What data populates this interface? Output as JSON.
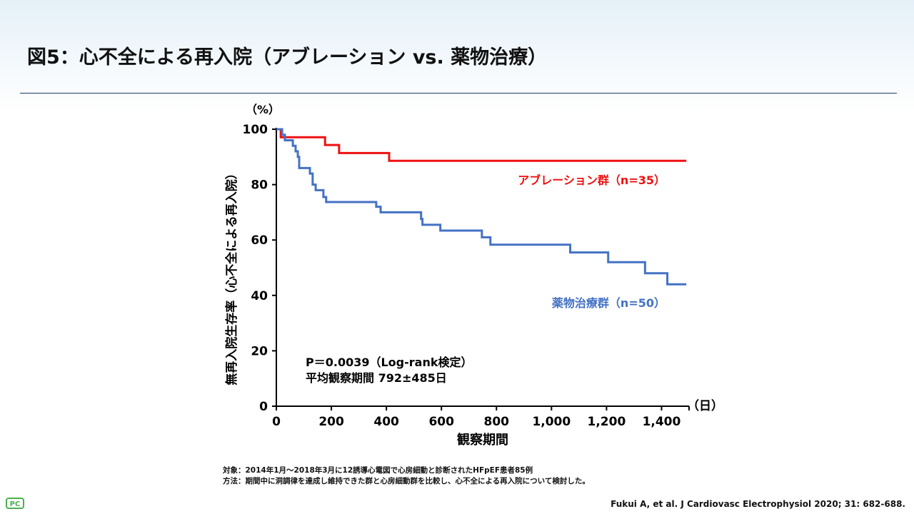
{
  "title": "図5：心不全による再入院（アブレーション vs. 薬物治療）",
  "chart_data": {
    "type": "line",
    "title": "",
    "xlabel": "観察期間",
    "ylabel": "無再入院生存率（心不全による再入院）",
    "x_unit": "（日）",
    "y_unit": "（%）",
    "xlim": [
      0,
      1500
    ],
    "ylim": [
      0,
      100
    ],
    "x_ticks": [
      0,
      200,
      400,
      600,
      800,
      1000,
      1200,
      1400
    ],
    "x_tick_labels": [
      "0",
      "200",
      "400",
      "600",
      "800",
      "1,000",
      "1,200",
      "1,400"
    ],
    "y_ticks": [
      0,
      20,
      40,
      60,
      80,
      100
    ],
    "y_tick_labels": [
      "0",
      "20",
      "40",
      "60",
      "80",
      "100"
    ],
    "step": true,
    "series": [
      {
        "name": "アブレーション群（n=35）",
        "color": "#ee1111",
        "x": [
          0,
          16,
          177,
          228,
          410,
          1490
        ],
        "y": [
          100,
          97.1,
          94.3,
          91.4,
          88.6,
          88.6
        ]
      },
      {
        "name": "薬物治療群（n=50）",
        "color": "#4472c4",
        "x": [
          0,
          21,
          31,
          60,
          70,
          78,
          83,
          122,
          132,
          143,
          171,
          181,
          363,
          379,
          526,
          531,
          596,
          747,
          778,
          1068,
          1206,
          1340,
          1421,
          1490
        ],
        "y": [
          100,
          98,
          96,
          94,
          92,
          90,
          86,
          84,
          80,
          78,
          75.5,
          73.7,
          72,
          70,
          67.6,
          65.5,
          63.4,
          61,
          58.3,
          55.5,
          52,
          48,
          44,
          44
        ]
      }
    ],
    "annotations": [
      "P＝0.0039（Log-rank検定）",
      "平均観察期間 792±485日"
    ]
  },
  "footnotes": [
    "対象：2014年1月～2018年3月に12誘導心電図で心房細動と診断されたHFpEF患者85例",
    "方法：期間中に洞調律を達成し維持できた群と心房細動群を比較し、心不全による再入院について検討した。"
  ],
  "citation": "Fukui A, et al. J Cardiovasc Electrophysiol 2020; 31: 682-688.",
  "logo": "PC"
}
